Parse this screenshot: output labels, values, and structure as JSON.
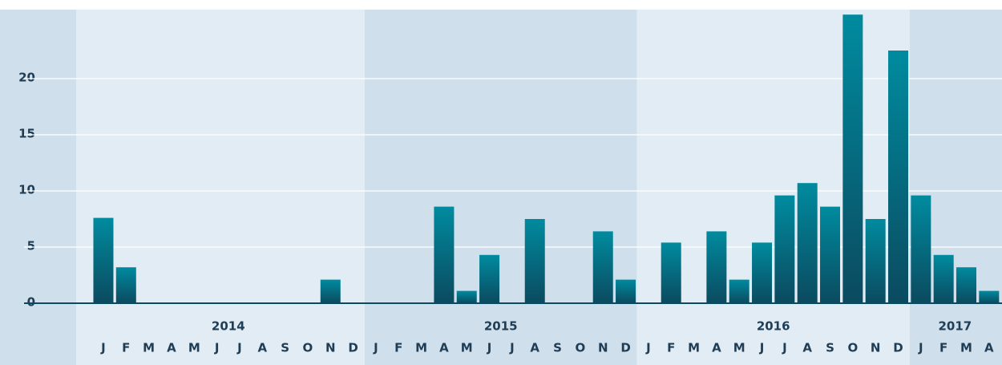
{
  "chart_data": {
    "type": "bar",
    "groups": [
      {
        "label": "2014",
        "categories": [
          "J",
          "F",
          "M",
          "A",
          "M",
          "J",
          "J",
          "A",
          "S",
          "O",
          "N",
          "D"
        ],
        "values": [
          7.6,
          3.2,
          0,
          0,
          0,
          0,
          0,
          0,
          0,
          0,
          2.1,
          0
        ]
      },
      {
        "label": "2015",
        "categories": [
          "J",
          "F",
          "M",
          "A",
          "M",
          "J",
          "J",
          "A",
          "S",
          "O",
          "N",
          "D"
        ],
        "values": [
          0,
          0,
          0,
          8.6,
          1.1,
          4.3,
          0,
          7.5,
          0,
          0,
          6.4,
          2.1
        ]
      },
      {
        "label": "2016",
        "categories": [
          "J",
          "F",
          "M",
          "A",
          "M",
          "J",
          "J",
          "A",
          "S",
          "O",
          "N",
          "D"
        ],
        "values": [
          0,
          5.4,
          0,
          6.4,
          2.1,
          5.4,
          9.6,
          10.7,
          8.6,
          25.7,
          7.5,
          22.5
        ]
      },
      {
        "label": "2017",
        "categories": [
          "J",
          "F",
          "M",
          "A"
        ],
        "values": [
          9.6,
          4.3,
          3.2,
          1.1
        ]
      }
    ],
    "color": [
      "#008b9f",
      "#0b4a5f"
    ],
    "band_colors": [
      "#e2ecf4",
      "#cfdfeb"
    ],
    "ylim": [
      0,
      26
    ],
    "yticks": [
      0,
      5,
      10,
      15,
      20
    ],
    "grid": true
  }
}
